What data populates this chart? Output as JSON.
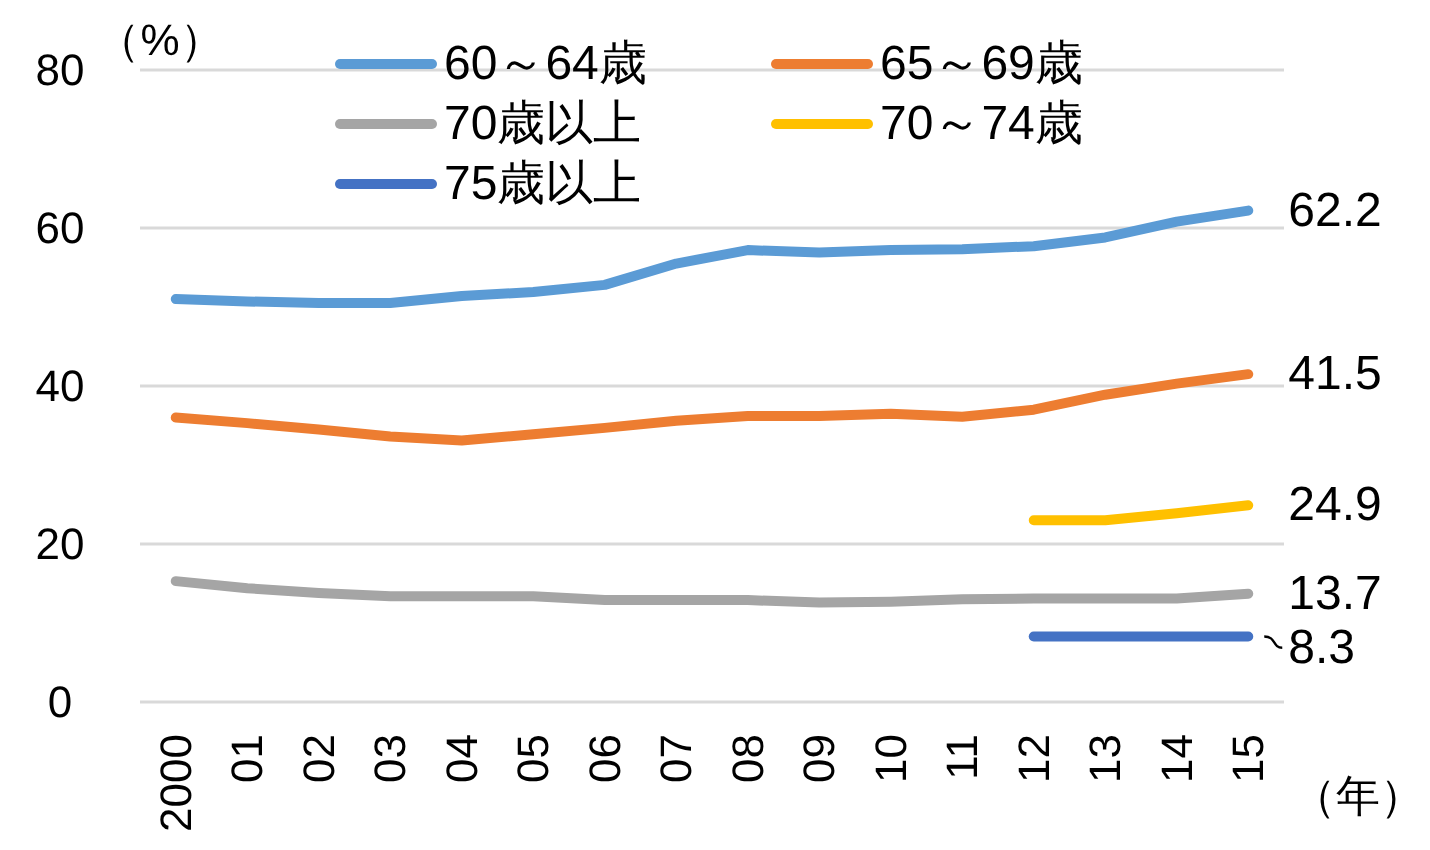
{
  "chart_data": {
    "type": "line",
    "ylabel": "（%）",
    "xlabel": "（年）",
    "categories": [
      "2000",
      "01",
      "02",
      "03",
      "04",
      "05",
      "06",
      "07",
      "08",
      "09",
      "10",
      "11",
      "12",
      "13",
      "14",
      "15"
    ],
    "series": [
      {
        "name": "60～64歳",
        "color": "#5b9bd5",
        "values": [
          51.0,
          50.7,
          50.5,
          50.5,
          51.4,
          51.9,
          52.8,
          55.5,
          57.2,
          56.9,
          57.2,
          57.3,
          57.7,
          58.8,
          60.8,
          62.2
        ],
        "value_labels": [
          null,
          null,
          null,
          null,
          null,
          null,
          null,
          null,
          null,
          null,
          null,
          null,
          null,
          null,
          null,
          "62.2"
        ]
      },
      {
        "name": "65～69歳",
        "color": "#ed7d31",
        "values": [
          36.0,
          35.3,
          34.5,
          33.6,
          33.1,
          33.9,
          34.7,
          35.6,
          36.2,
          36.2,
          36.5,
          36.1,
          37.0,
          38.9,
          40.3,
          41.5
        ],
        "value_labels": [
          null,
          null,
          null,
          null,
          null,
          null,
          null,
          null,
          null,
          null,
          null,
          null,
          null,
          null,
          null,
          "41.5"
        ]
      },
      {
        "name": "70歳以上",
        "color": "#a5a5a5",
        "values": [
          15.3,
          14.4,
          13.8,
          13.4,
          13.4,
          13.4,
          12.9,
          12.9,
          12.9,
          12.6,
          12.7,
          13.0,
          13.1,
          13.1,
          13.1,
          13.7
        ],
        "value_labels": [
          null,
          null,
          null,
          null,
          null,
          null,
          null,
          null,
          null,
          null,
          null,
          null,
          null,
          null,
          null,
          "13.7"
        ]
      },
      {
        "name": "70～74歳",
        "color": "#ffc000",
        "values": [
          null,
          null,
          null,
          null,
          null,
          null,
          null,
          null,
          null,
          null,
          null,
          null,
          23.0,
          23.0,
          23.9,
          24.9
        ],
        "value_labels": [
          null,
          null,
          null,
          null,
          null,
          null,
          null,
          null,
          null,
          null,
          null,
          null,
          null,
          null,
          null,
          "24.9"
        ]
      },
      {
        "name": "75歳以上",
        "color": "#4472c4",
        "values": [
          null,
          null,
          null,
          null,
          null,
          null,
          null,
          null,
          null,
          null,
          null,
          null,
          8.3,
          8.3,
          8.3,
          8.3
        ],
        "value_labels": [
          null,
          null,
          null,
          null,
          null,
          null,
          null,
          null,
          null,
          null,
          null,
          null,
          null,
          null,
          null,
          "8.3"
        ]
      }
    ],
    "ylim": [
      0,
      80
    ],
    "yticks": [
      0,
      20,
      40,
      60,
      80
    ],
    "grid": "y",
    "legend": "top"
  }
}
